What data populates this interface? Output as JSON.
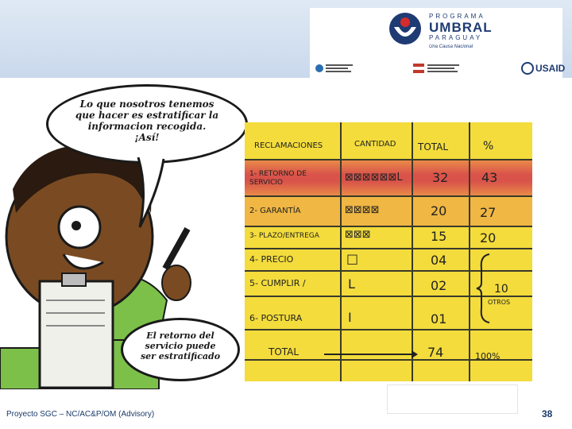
{
  "header": {
    "program_line1": "PROGRAMA",
    "program_line2": "UMBRAL",
    "program_line3": "PARAGUAY",
    "slogan": "Una Causa Nacional",
    "usaid": "USAID"
  },
  "cartoon": {
    "bubble_top": [
      "Lo que nosotros tenemos",
      "que hacer es estratificar la",
      "informacion recogida.",
      "¡Así!"
    ],
    "bubble_bottom": [
      "El retorno del",
      "servicio puede",
      "ser estratificado"
    ]
  },
  "table": {
    "headers": [
      "RECLAMACIONES",
      "CANTIDAD",
      "TOTAL",
      "%"
    ],
    "rows": [
      {
        "name": "1- RETORNO DE SERVICIO",
        "count": "⊠⊠⊠⊠⊠⊠L",
        "total": "32",
        "pct": "43"
      },
      {
        "name": "2- GARANTÍA",
        "count": "⊠⊠⊠⊠",
        "total": "20",
        "pct": "27"
      },
      {
        "name": "3- PLAZO/ENTREGA",
        "count": "⊠⊠⊠",
        "total": "15",
        "pct": "20"
      },
      {
        "name": "4- PRECIO",
        "count": "□",
        "total": "04",
        "pct": ""
      },
      {
        "name": "5- CUMPLIR /",
        "count": "L",
        "total": "02",
        "pct": ""
      },
      {
        "name": "6- POSTURA",
        "count": "I",
        "total": "01",
        "pct": ""
      }
    ],
    "others_value": "10",
    "others_label": "OTROS",
    "total_label": "TOTAL",
    "total_value": "74",
    "total_pct": "100%"
  },
  "footer": {
    "project": "Proyecto SGC – NC/AC&P/OM (Advisory)",
    "page": "38"
  },
  "colors": {
    "board": "#f3dc3c",
    "row1": "#d9534a",
    "navy": "#1f3b73"
  }
}
